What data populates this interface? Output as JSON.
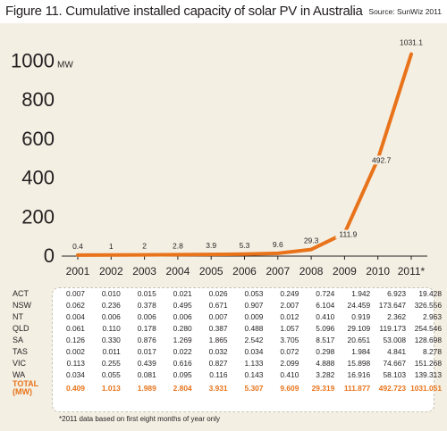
{
  "figure": {
    "title": "Figure 11. Cumulative installed capacity of solar PV in Australia",
    "source": "Source: SunWiz 2011"
  },
  "chart_data": {
    "type": "line",
    "title": "Figure 11. Cumulative installed capacity of solar PV in Australia",
    "x": [
      "2001",
      "2002",
      "2003",
      "2004",
      "2005",
      "2006",
      "2007",
      "2008",
      "2009",
      "2010",
      "2011*"
    ],
    "values": [
      0.4,
      1,
      2,
      2.8,
      3.9,
      5.3,
      9.6,
      29.3,
      111.9,
      492.7,
      1031.1
    ],
    "data_labels": [
      "0.4",
      "1",
      "2",
      "2.8",
      "3.9",
      "5.3",
      "9.6",
      "29.3",
      "111.9",
      "492.7",
      "1031.1"
    ],
    "y_ticks": [
      "0",
      "200",
      "400",
      "600",
      "800",
      "1000"
    ],
    "y_unit": "MW",
    "ylim": [
      0,
      1031.1
    ],
    "grid": false,
    "line_color": "#e8731a"
  },
  "table": {
    "rows": [
      {
        "label": "ACT",
        "values": [
          "0.007",
          "0.010",
          "0.015",
          "0.021",
          "0.026",
          "0.053",
          "0.249",
          "0.724",
          "1.942",
          "6.923",
          "19.428"
        ]
      },
      {
        "label": "NSW",
        "values": [
          "0.062",
          "0.236",
          "0.378",
          "0.495",
          "0.671",
          "0.907",
          "2.007",
          "6.104",
          "24.459",
          "173.647",
          "326.556"
        ]
      },
      {
        "label": "NT",
        "values": [
          "0.004",
          "0.006",
          "0.006",
          "0.006",
          "0.007",
          "0.009",
          "0.012",
          "0.410",
          "0.919",
          "2.362",
          "2.963"
        ]
      },
      {
        "label": "QLD",
        "values": [
          "0.061",
          "0.110",
          "0.178",
          "0.280",
          "0.387",
          "0.488",
          "1.057",
          "5.096",
          "29.109",
          "119.173",
          "254.546"
        ]
      },
      {
        "label": "SA",
        "values": [
          "0.126",
          "0.330",
          "0.876",
          "1.269",
          "1.865",
          "2.542",
          "3.705",
          "8.517",
          "20.651",
          "53.008",
          "128.698"
        ]
      },
      {
        "label": "TAS",
        "values": [
          "0.002",
          "0.011",
          "0.017",
          "0.022",
          "0.032",
          "0.034",
          "0.072",
          "0.298",
          "1.984",
          "4.841",
          "8.278"
        ]
      },
      {
        "label": "VIC",
        "values": [
          "0.113",
          "0.255",
          "0.439",
          "0.616",
          "0.827",
          "1.133",
          "2.099",
          "4.888",
          "15.898",
          "74.667",
          "151.268"
        ]
      },
      {
        "label": "WA",
        "values": [
          "0.034",
          "0.055",
          "0.081",
          "0.095",
          "0.116",
          "0.143",
          "0.410",
          "3.282",
          "16.916",
          "58.103",
          "139.313"
        ]
      }
    ],
    "total": {
      "label_line1": "TOTAL",
      "label_line2": "(MW)",
      "values": [
        "0.409",
        "1.013",
        "1.989",
        "2.804",
        "3.931",
        "5.307",
        "9.609",
        "29.319",
        "111.877",
        "492.723",
        "1031.051"
      ]
    },
    "total_color": "#e8731a"
  },
  "footnote": "*2011 data based on first eight months of year only"
}
